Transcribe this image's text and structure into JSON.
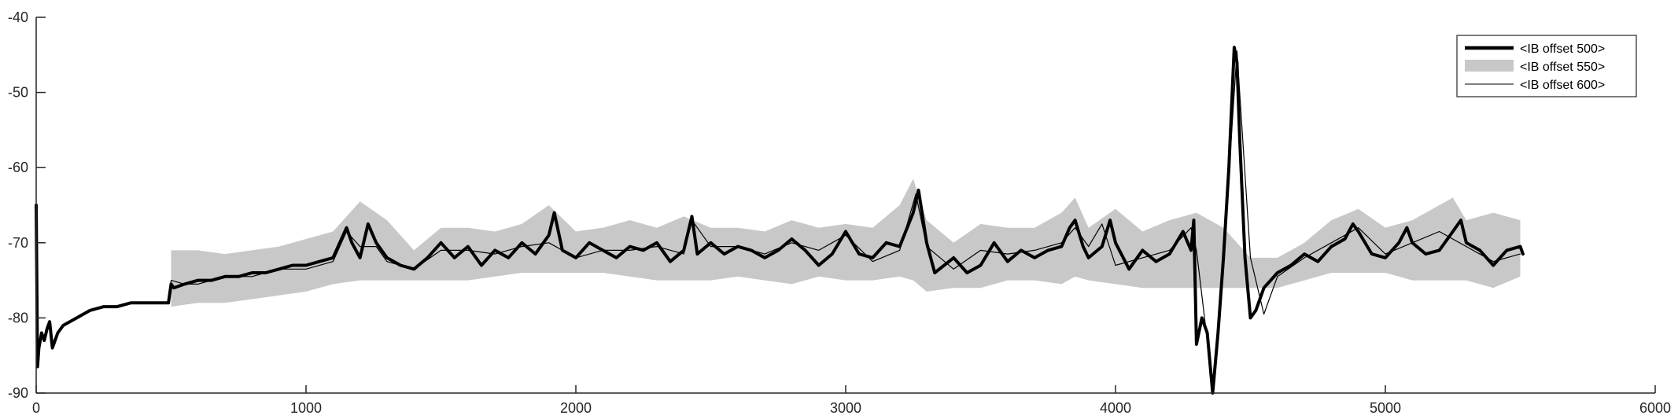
{
  "chart_data": {
    "type": "line",
    "title": "",
    "xlabel": "",
    "ylabel": "",
    "xlim": [
      0,
      6000
    ],
    "ylim": [
      -90,
      -40
    ],
    "xticks": [
      0,
      1000,
      2000,
      3000,
      4000,
      5000,
      6000
    ],
    "yticks": [
      -90,
      -80,
      -70,
      -60,
      -50,
      -40
    ],
    "xtick_labels": [
      "0",
      "1000",
      "2000",
      "3000",
      "4000",
      "5000",
      "6000"
    ],
    "ytick_labels": [
      "-90",
      "-80",
      "-70",
      "-60",
      "-50",
      "-40"
    ],
    "grid": false,
    "legend": {
      "position": "top-right",
      "entries": [
        "<IB offset 500>",
        "<IB offset 550>",
        "<IB offset 600>"
      ]
    },
    "colors": {
      "offset_500": "#000000",
      "offset_550": "#c8c8c8",
      "offset_600": "#000000"
    },
    "series": [
      {
        "name": "<IB offset 500>",
        "style": "thick-line",
        "x": [
          0,
          5,
          10,
          20,
          30,
          40,
          50,
          60,
          80,
          100,
          150,
          200,
          250,
          300,
          350,
          400,
          450,
          490,
          500,
          510,
          550,
          600,
          650,
          700,
          750,
          800,
          850,
          900,
          950,
          1000,
          1050,
          1100,
          1150,
          1170,
          1200,
          1230,
          1260,
          1300,
          1350,
          1400,
          1450,
          1500,
          1550,
          1600,
          1650,
          1700,
          1750,
          1800,
          1850,
          1900,
          1920,
          1950,
          2000,
          2050,
          2100,
          2150,
          2200,
          2250,
          2300,
          2350,
          2400,
          2430,
          2450,
          2500,
          2550,
          2600,
          2650,
          2700,
          2750,
          2800,
          2850,
          2900,
          2950,
          3000,
          3050,
          3100,
          3150,
          3200,
          3250,
          3270,
          3300,
          3330,
          3400,
          3450,
          3500,
          3550,
          3600,
          3650,
          3700,
          3750,
          3800,
          3830,
          3850,
          3880,
          3900,
          3950,
          3980,
          4000,
          4050,
          4100,
          4150,
          4200,
          4250,
          4280,
          4290,
          4300,
          4320,
          4340,
          4360,
          4380,
          4400,
          4420,
          4440,
          4450,
          4460,
          4480,
          4500,
          4520,
          4550,
          4600,
          4650,
          4700,
          4750,
          4800,
          4850,
          4880,
          4900,
          4950,
          5000,
          5050,
          5080,
          5100,
          5150,
          5200,
          5250,
          5280,
          5300,
          5350,
          5400,
          5450,
          5500,
          5510
        ],
        "y": [
          -65,
          -86.5,
          -84,
          -82,
          -83,
          -81.5,
          -80.5,
          -84,
          -82,
          -81,
          -80,
          -79,
          -78.5,
          -78.5,
          -78,
          -78,
          -78,
          -78,
          -75.5,
          -76,
          -75.5,
          -75,
          -75,
          -74.5,
          -74.5,
          -74,
          -74,
          -73.5,
          -73,
          -73,
          -72.5,
          -72,
          -68,
          -70,
          -72,
          -67.5,
          -70,
          -72,
          -73,
          -73.5,
          -72,
          -70,
          -72,
          -70.5,
          -73,
          -71,
          -72,
          -70,
          -71.5,
          -69,
          -66,
          -71,
          -72,
          -70,
          -71,
          -72,
          -70.5,
          -71,
          -70,
          -72.5,
          -71,
          -66.5,
          -71.5,
          -70,
          -71.5,
          -70.5,
          -71,
          -72,
          -71,
          -69.5,
          -71,
          -73,
          -71.5,
          -68.5,
          -71.5,
          -72,
          -70,
          -70.5,
          -66,
          -63,
          -70,
          -74,
          -72,
          -74,
          -73,
          -70,
          -72.5,
          -71,
          -72,
          -71,
          -70.5,
          -68,
          -67,
          -70.5,
          -72,
          -70.5,
          -67,
          -70,
          -73.5,
          -71,
          -72.5,
          -71.5,
          -68.5,
          -71,
          -67,
          -83.5,
          -80,
          -82,
          -90,
          -82,
          -72,
          -60,
          -44,
          -46,
          -56,
          -72,
          -80,
          -79,
          -76,
          -74,
          -73,
          -71.5,
          -72.5,
          -70.5,
          -69.5,
          -67.5,
          -68.5,
          -71.5,
          -72,
          -70,
          -68,
          -70,
          -71.5,
          -71,
          -68.5,
          -67,
          -70,
          -71,
          -73,
          -71,
          -70.5,
          -71.5
        ]
      },
      {
        "name": "<IB offset 550>",
        "style": "gray-band",
        "x": [
          500,
          600,
          700,
          800,
          900,
          1000,
          1100,
          1200,
          1300,
          1400,
          1500,
          1600,
          1700,
          1800,
          1900,
          2000,
          2100,
          2200,
          2300,
          2400,
          2500,
          2600,
          2700,
          2800,
          2900,
          3000,
          3100,
          3200,
          3250,
          3300,
          3400,
          3500,
          3600,
          3700,
          3800,
          3850,
          3900,
          4000,
          4100,
          4200,
          4300,
          4400,
          4500,
          4600,
          4700,
          4800,
          4900,
          5000,
          5100,
          5200,
          5250,
          5300,
          5400,
          5500
        ],
        "y_upper": [
          -71,
          -71,
          -71.5,
          -71,
          -70.5,
          -69.5,
          -68.5,
          -64.5,
          -67,
          -71,
          -68,
          -68,
          -68.5,
          -67.5,
          -65,
          -68.5,
          -68,
          -67,
          -68,
          -66.5,
          -68,
          -68,
          -68.5,
          -67,
          -68,
          -67.5,
          -68,
          -65,
          -61.5,
          -67,
          -70,
          -67.5,
          -68,
          -68,
          -66,
          -64,
          -68,
          -65.5,
          -68.5,
          -67,
          -66,
          -68,
          -72,
          -72,
          -70,
          -67,
          -65.5,
          -68,
          -67,
          -65,
          -64,
          -67,
          -66,
          -67
        ],
        "y_lower": [
          -78.5,
          -78,
          -78,
          -77.5,
          -77,
          -76.5,
          -75.5,
          -75,
          -75,
          -75,
          -75,
          -75,
          -74.5,
          -74,
          -74,
          -74,
          -74,
          -74.5,
          -75,
          -75,
          -75,
          -74.5,
          -75,
          -75.5,
          -74.5,
          -75,
          -75,
          -74.5,
          -75,
          -76.5,
          -76,
          -76,
          -75,
          -75,
          -75.5,
          -74.5,
          -75,
          -75.5,
          -76,
          -76,
          -76,
          -76,
          -76,
          -76,
          -75,
          -74,
          -74,
          -74,
          -75,
          -75,
          -75,
          -75,
          -76,
          -74.5
        ]
      },
      {
        "name": "<IB offset 600>",
        "style": "thin-line",
        "x": [
          0,
          5,
          10,
          20,
          30,
          40,
          50,
          60,
          80,
          100,
          150,
          200,
          250,
          300,
          350,
          400,
          450,
          490,
          500,
          550,
          600,
          700,
          800,
          900,
          1000,
          1100,
          1150,
          1200,
          1260,
          1300,
          1400,
          1500,
          1600,
          1700,
          1800,
          1900,
          2000,
          2100,
          2200,
          2300,
          2400,
          2430,
          2500,
          2600,
          2700,
          2800,
          2900,
          3000,
          3100,
          3200,
          3260,
          3300,
          3400,
          3500,
          3600,
          3700,
          3800,
          3850,
          3900,
          3950,
          4000,
          4100,
          4200,
          4280,
          4300,
          4340,
          4360,
          4400,
          4450,
          4500,
          4550,
          4600,
          4700,
          4800,
          4900,
          5000,
          5100,
          5200,
          5300,
          5400,
          5500
        ],
        "y": [
          -65,
          -86,
          -84,
          -82.5,
          -83,
          -81.5,
          -81,
          -84,
          -82,
          -81,
          -80,
          -79,
          -78.5,
          -78.5,
          -78,
          -78,
          -78,
          -78,
          -75,
          -75.5,
          -75.5,
          -74.5,
          -74.5,
          -73.5,
          -73.5,
          -72.5,
          -68.5,
          -70.5,
          -70.5,
          -72.5,
          -73.5,
          -71,
          -71,
          -71.5,
          -70.5,
          -70,
          -72,
          -71,
          -71,
          -70.5,
          -71.5,
          -67,
          -70.5,
          -70.5,
          -71.5,
          -70,
          -71,
          -69,
          -72.5,
          -71,
          -63.5,
          -70.5,
          -73.5,
          -71,
          -71.5,
          -71,
          -70,
          -68,
          -70.5,
          -67.5,
          -73,
          -72,
          -71,
          -68,
          -71,
          -83,
          -89.5,
          -72,
          -44.5,
          -72,
          -79.5,
          -74.5,
          -72,
          -70,
          -68,
          -71.5,
          -70,
          -68.5,
          -70.5,
          -72.5,
          -71.5
        ]
      }
    ]
  }
}
